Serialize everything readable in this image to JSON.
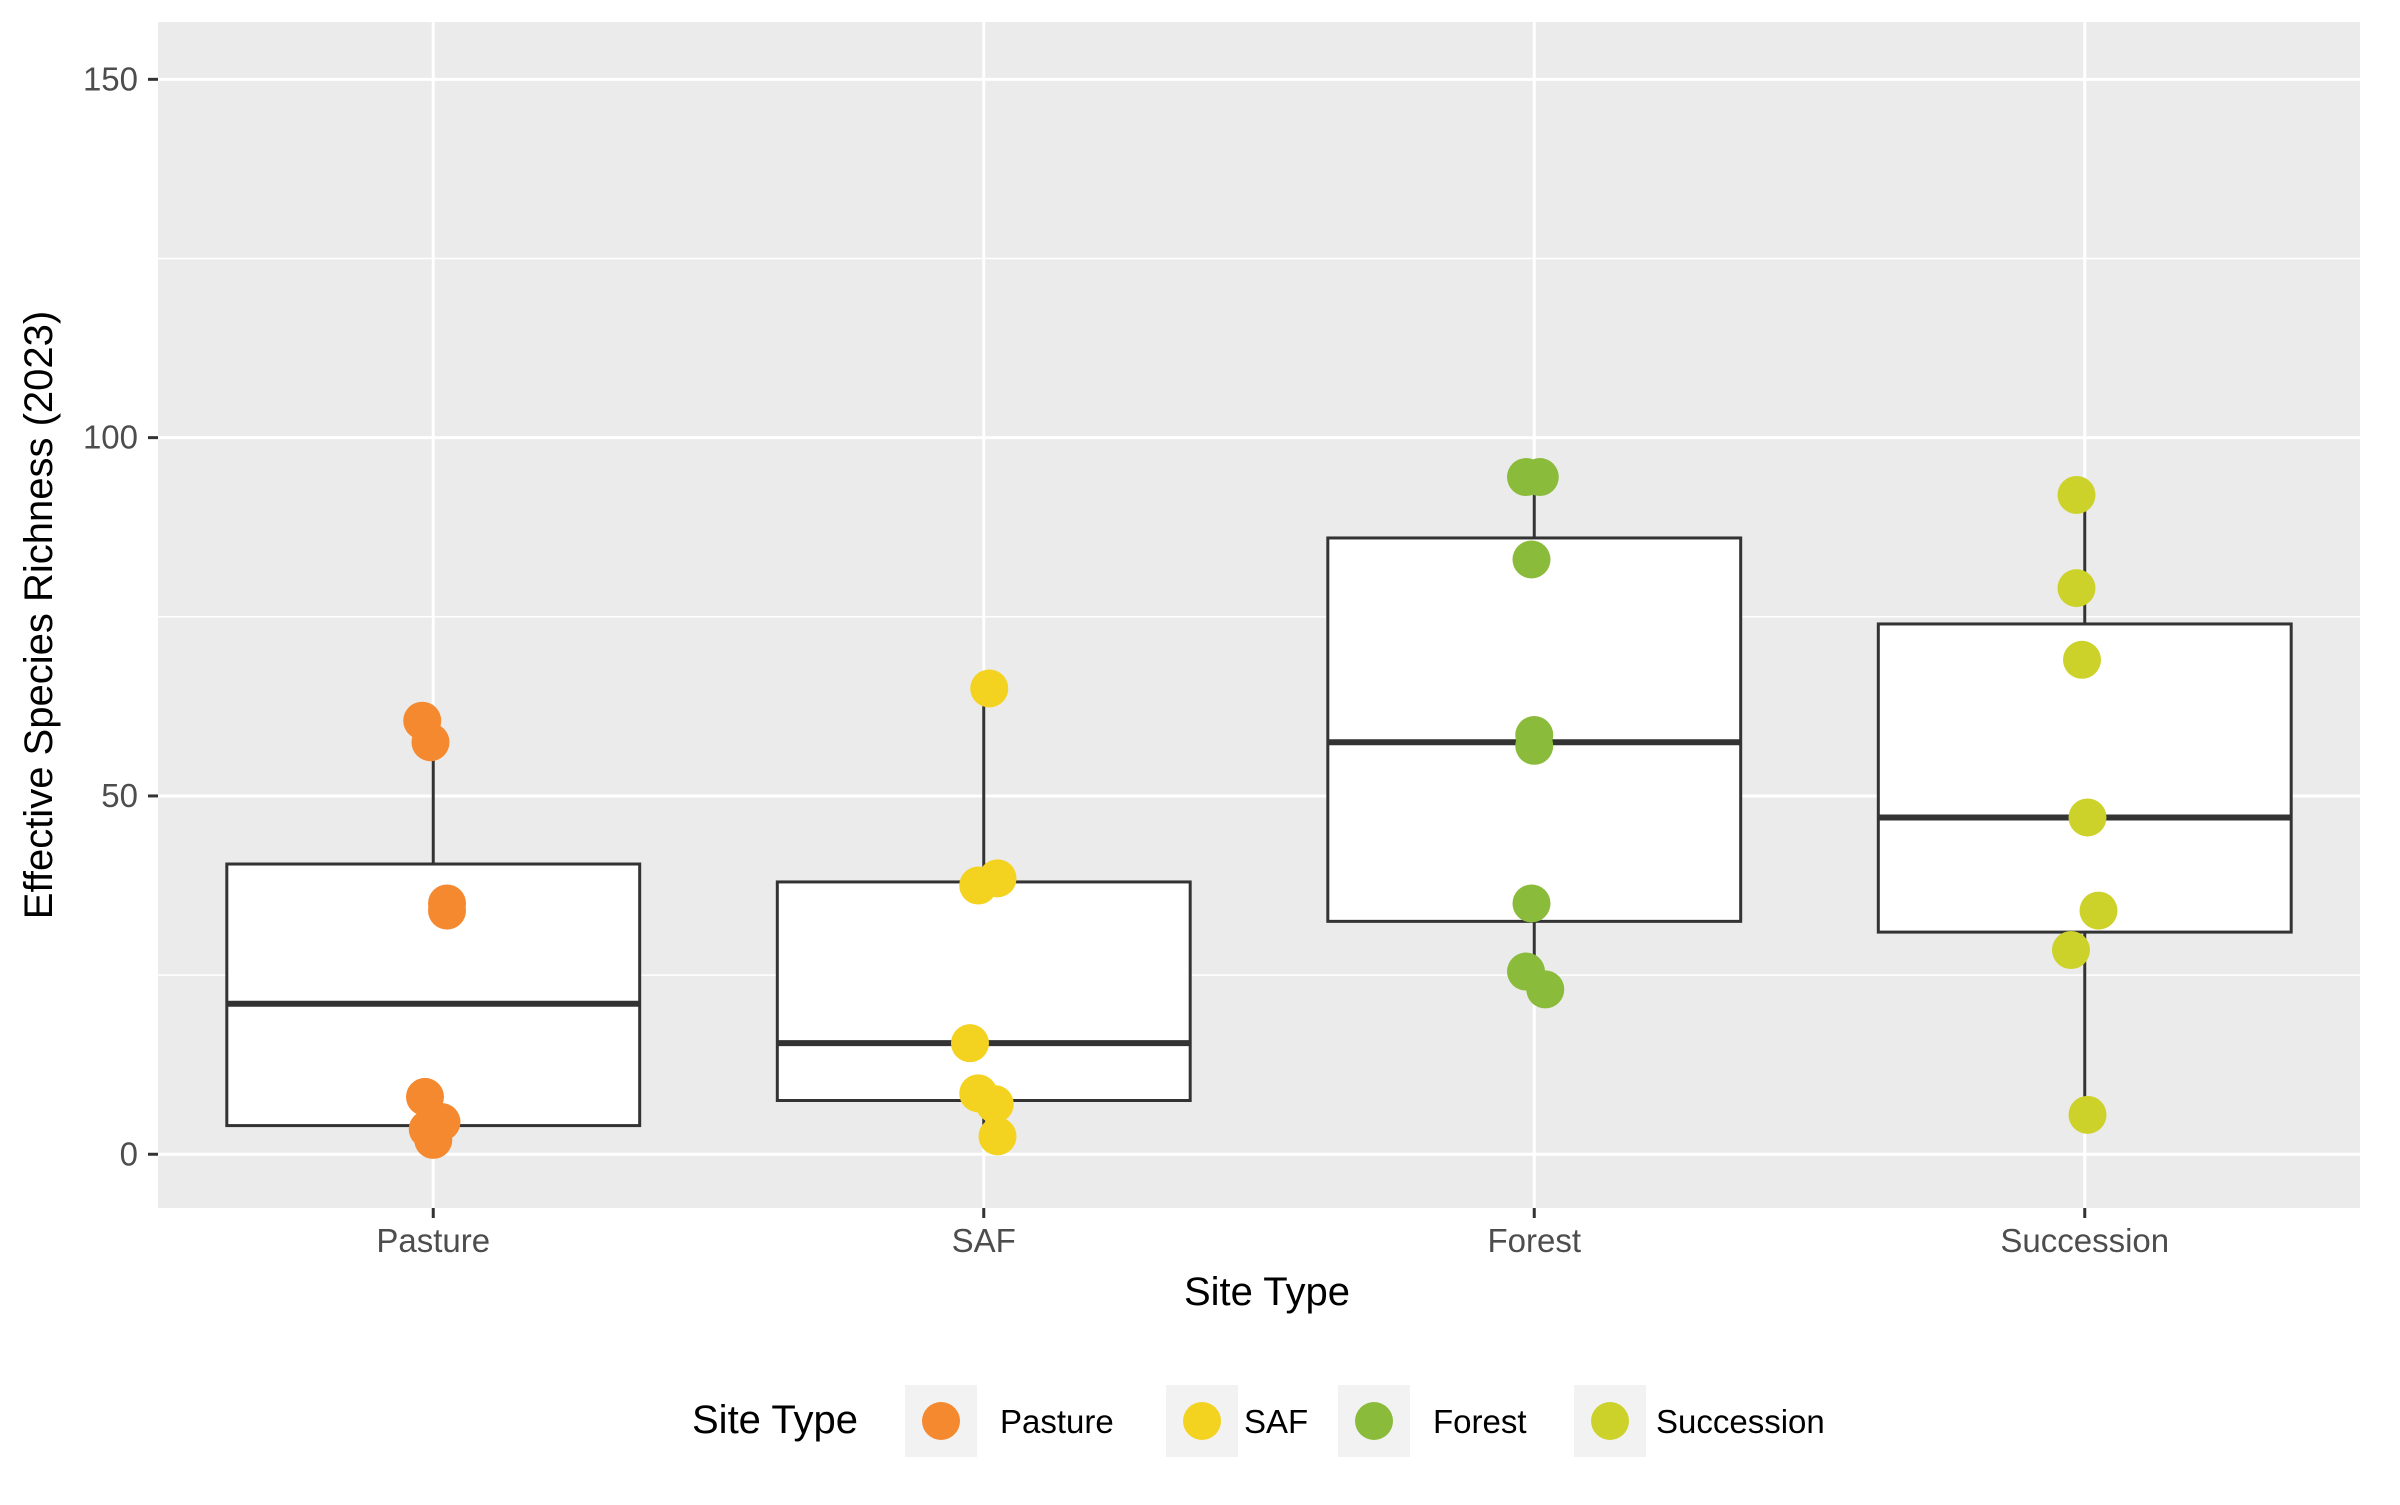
{
  "chart_data": {
    "type": "box",
    "xlabel": "Site Type",
    "ylabel": "Effective Species Richness (2023)",
    "ylim": [
      -7.5,
      158
    ],
    "yticks": [
      0,
      50,
      100,
      150
    ],
    "grid": true,
    "legend_position": "bottom",
    "legend_title": "Site Type",
    "categories": [
      "Pasture",
      "SAF",
      "Forest",
      "Succession"
    ],
    "colors": {
      "Pasture": "#f5892f",
      "SAF": "#f4d220",
      "Forest": "#8bbb3b",
      "Succession": "#ccd22a"
    },
    "boxes": [
      {
        "category": "Pasture",
        "whisker_low": 2,
        "q1": 4,
        "median": 21,
        "q3": 40.5,
        "whisker_high": 60
      },
      {
        "category": "SAF",
        "whisker_low": 3,
        "q1": 7.5,
        "median": 15.5,
        "q3": 38,
        "whisker_high": 64.5
      },
      {
        "category": "Forest",
        "whisker_low": 23,
        "q1": 32.5,
        "median": 57.5,
        "q3": 86,
        "whisker_high": 94.5
      },
      {
        "category": "Succession",
        "whisker_low": 5.5,
        "q1": 31,
        "median": 47,
        "q3": 74,
        "whisker_high": 92
      }
    ],
    "points": [
      {
        "category": "Pasture",
        "jitter": -0.04,
        "y": 60.5
      },
      {
        "category": "Pasture",
        "jitter": -0.01,
        "y": 57.5
      },
      {
        "category": "Pasture",
        "jitter": 0.05,
        "y": 35
      },
      {
        "category": "Pasture",
        "jitter": 0.05,
        "y": 34
      },
      {
        "category": "Pasture",
        "jitter": -0.03,
        "y": 8
      },
      {
        "category": "Pasture",
        "jitter": 0.03,
        "y": 4.5
      },
      {
        "category": "Pasture",
        "jitter": -0.02,
        "y": 3.5
      },
      {
        "category": "Pasture",
        "jitter": 0.0,
        "y": 2
      },
      {
        "category": "SAF",
        "jitter": 0.02,
        "y": 65
      },
      {
        "category": "SAF",
        "jitter": 0.05,
        "y": 38.5
      },
      {
        "category": "SAF",
        "jitter": -0.02,
        "y": 37.5
      },
      {
        "category": "SAF",
        "jitter": -0.05,
        "y": 15.5
      },
      {
        "category": "SAF",
        "jitter": -0.02,
        "y": 8.5
      },
      {
        "category": "SAF",
        "jitter": 0.04,
        "y": 7
      },
      {
        "category": "SAF",
        "jitter": 0.05,
        "y": 2.5
      },
      {
        "category": "Forest",
        "jitter": -0.03,
        "y": 94.5
      },
      {
        "category": "Forest",
        "jitter": 0.02,
        "y": 94.5
      },
      {
        "category": "Forest",
        "jitter": -0.01,
        "y": 83
      },
      {
        "category": "Forest",
        "jitter": 0.0,
        "y": 58.5
      },
      {
        "category": "Forest",
        "jitter": 0.0,
        "y": 57
      },
      {
        "category": "Forest",
        "jitter": -0.01,
        "y": 35
      },
      {
        "category": "Forest",
        "jitter": -0.03,
        "y": 25.5
      },
      {
        "category": "Forest",
        "jitter": 0.04,
        "y": 23
      },
      {
        "category": "Succession",
        "jitter": -0.03,
        "y": 92
      },
      {
        "category": "Succession",
        "jitter": -0.03,
        "y": 79
      },
      {
        "category": "Succession",
        "jitter": -0.01,
        "y": 69
      },
      {
        "category": "Succession",
        "jitter": 0.01,
        "y": 47
      },
      {
        "category": "Succession",
        "jitter": 0.05,
        "y": 34
      },
      {
        "category": "Succession",
        "jitter": -0.05,
        "y": 28.5
      },
      {
        "category": "Succession",
        "jitter": 0.01,
        "y": 5.5
      }
    ]
  }
}
